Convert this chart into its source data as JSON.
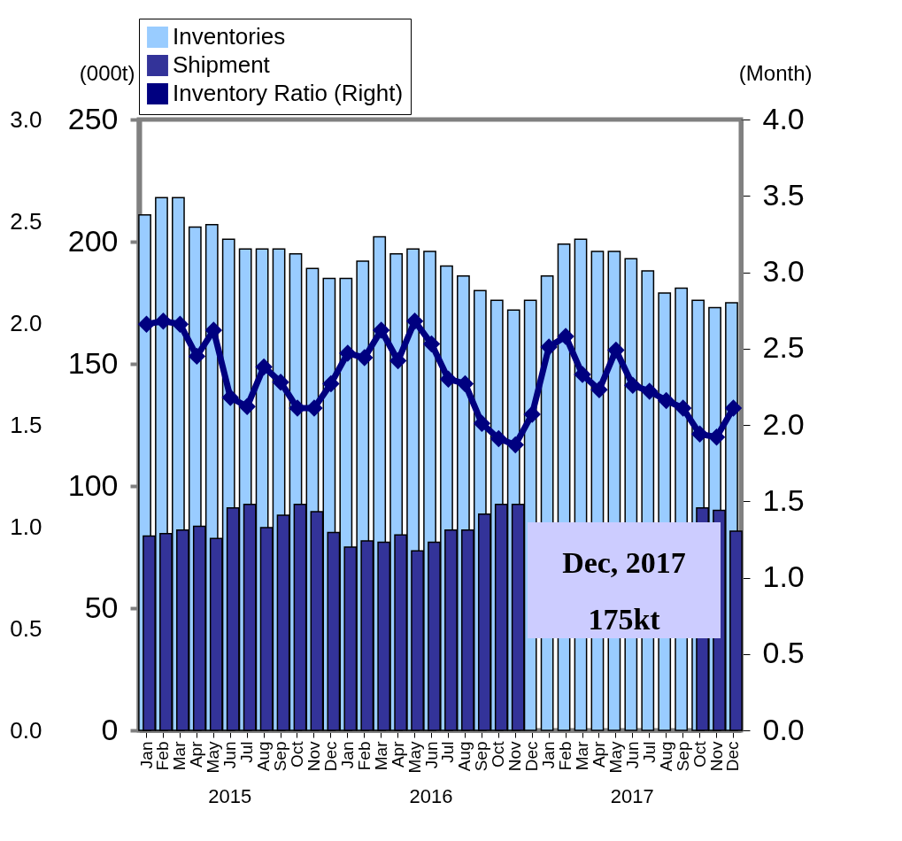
{
  "chart_data": {
    "type": "bar",
    "ylabel": "(000t)",
    "y2label": "(Month)",
    "categories": [
      "Jan",
      "Feb",
      "Mar",
      "Apr",
      "May",
      "Jun",
      "Jul",
      "Aug",
      "Sep",
      "Oct",
      "Nov",
      "Dec",
      "Jan",
      "Feb",
      "Mar",
      "Apr",
      "May",
      "Jun",
      "Jul",
      "Aug",
      "Sep",
      "Oct",
      "Nov",
      "Dec",
      "Jan",
      "Feb",
      "Mar",
      "Apr",
      "May",
      "Jun",
      "Jul",
      "Aug",
      "Sep",
      "Oct",
      "Nov",
      "Dec"
    ],
    "series": [
      {
        "name": "Inventories",
        "color": "#99ccff",
        "values": [
          211,
          218,
          218,
          206,
          207,
          201,
          197,
          197,
          197,
          195,
          189,
          185,
          185,
          192,
          202,
          195,
          197,
          196,
          190,
          186,
          180,
          176,
          172,
          176,
          186,
          199,
          201,
          196,
          196,
          193,
          188,
          179,
          181,
          176,
          173,
          175
        ]
      },
      {
        "name": "Shipment",
        "color": "#333399",
        "values": [
          79.5,
          80.5,
          82,
          83.5,
          78.5,
          91,
          92.5,
          83,
          88,
          92.5,
          89.5,
          81,
          75,
          77.5,
          77,
          80,
          73.5,
          77,
          82,
          82,
          88.5,
          92.5,
          92.5,
          null,
          null,
          null,
          null,
          null,
          null,
          null,
          null,
          null,
          null,
          91,
          90,
          81.5
        ]
      },
      {
        "name": "Inventory Ratio (Right)",
        "type": "line",
        "axis": "y2",
        "color": "#000080",
        "values": [
          2.66,
          2.68,
          2.66,
          2.45,
          2.62,
          2.18,
          2.12,
          2.38,
          2.28,
          2.11,
          2.11,
          2.27,
          2.47,
          2.44,
          2.62,
          2.42,
          2.68,
          2.53,
          2.3,
          2.27,
          2.01,
          1.91,
          1.87,
          2.07,
          2.51,
          2.58,
          2.33,
          2.23,
          2.49,
          2.26,
          2.22,
          2.16,
          2.11,
          1.94,
          1.92,
          2.11
        ]
      }
    ],
    "ylim": [
      0,
      250
    ],
    "yticks": [
      0,
      50,
      100,
      150,
      200,
      250
    ],
    "y2lim": [
      0,
      4
    ],
    "y2ticks": [
      {
        "value": 0,
        "label": "0.0"
      },
      0.5,
      {
        "value": 1,
        "label": "1.0"
      },
      1.5,
      {
        "value": 2,
        "label": "2.0"
      },
      2.5,
      {
        "value": 3,
        "label": "3.0"
      },
      3.5,
      {
        "value": 4,
        "label": "4.0"
      }
    ],
    "y3lim": [
      0,
      3
    ],
    "y3ticks": [
      {
        "value": 0,
        "label": "0.0"
      },
      0.5,
      {
        "value": 1,
        "label": "1.0"
      },
      1.5,
      {
        "value": 2,
        "label": "2.0"
      },
      2.5,
      {
        "value": 3,
        "label": "3.0"
      }
    ],
    "marker": "diamond",
    "legend": "top",
    "annotations": [
      "2015",
      "2016",
      "2017",
      "Dec, 2017",
      "175kt"
    ]
  }
}
